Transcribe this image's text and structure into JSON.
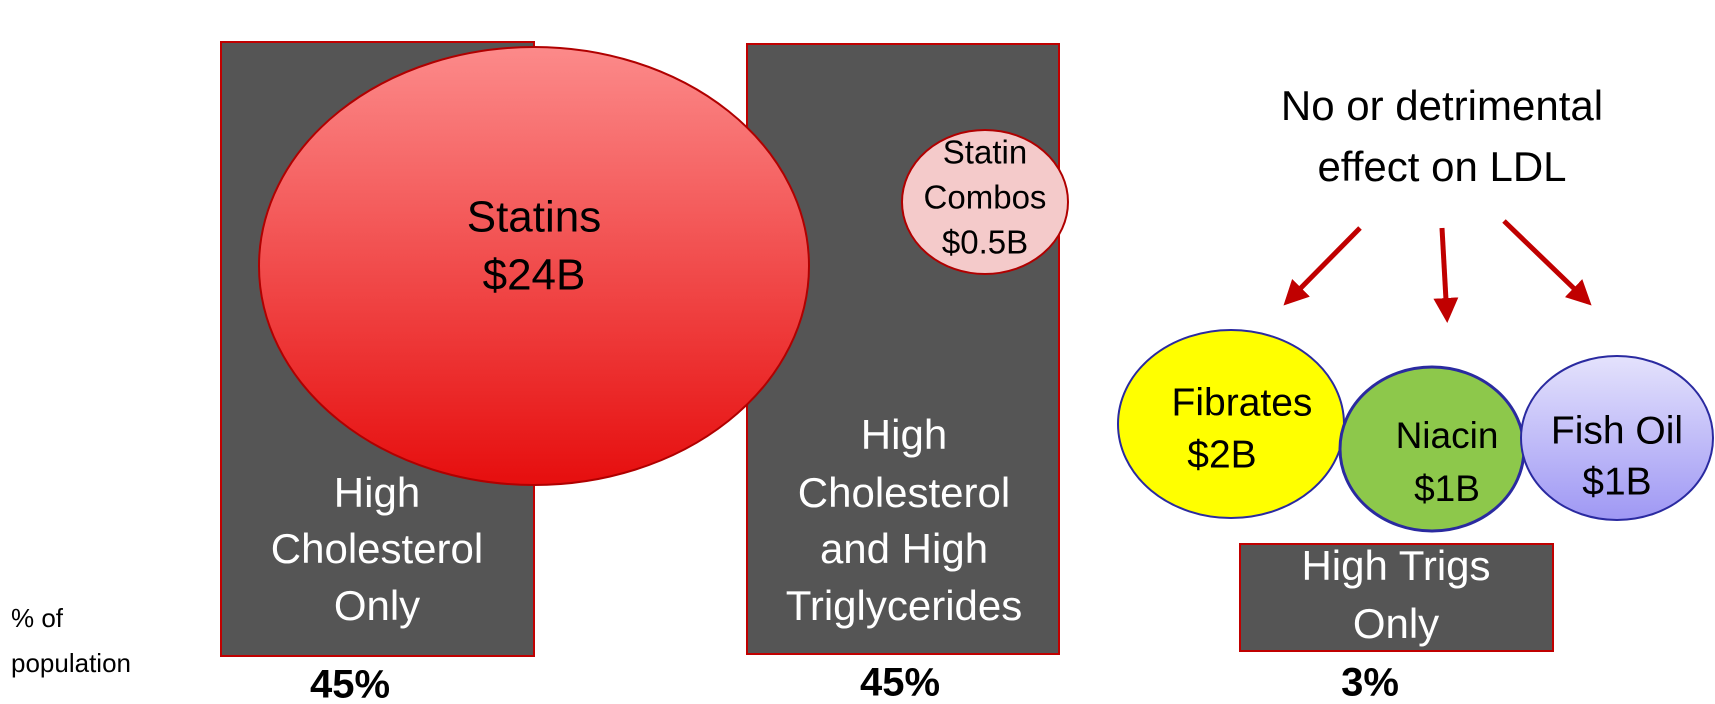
{
  "title": [
    "No or detrimental",
    "effect on LDL"
  ],
  "axis_label": [
    "% of",
    "population"
  ],
  "groups": [
    {
      "label": [
        "High",
        "Cholesterol",
        "Only"
      ],
      "share": "45%"
    },
    {
      "label": [
        "High",
        "Cholesterol",
        "and High",
        "Triglycerides"
      ],
      "share": "45%"
    },
    {
      "label": [
        "High Trigs",
        "Only"
      ],
      "share": "3%"
    }
  ],
  "bubbles": [
    {
      "label": [
        "Statins",
        "$24B"
      ]
    },
    {
      "label": [
        "Statin",
        "Combos",
        "$0.5B"
      ]
    },
    {
      "label": [
        "Fibrates",
        "$2B"
      ]
    },
    {
      "label": [
        "Niacin",
        "$1B"
      ]
    },
    {
      "label": [
        "Fish Oil",
        "$1B"
      ]
    }
  ]
}
